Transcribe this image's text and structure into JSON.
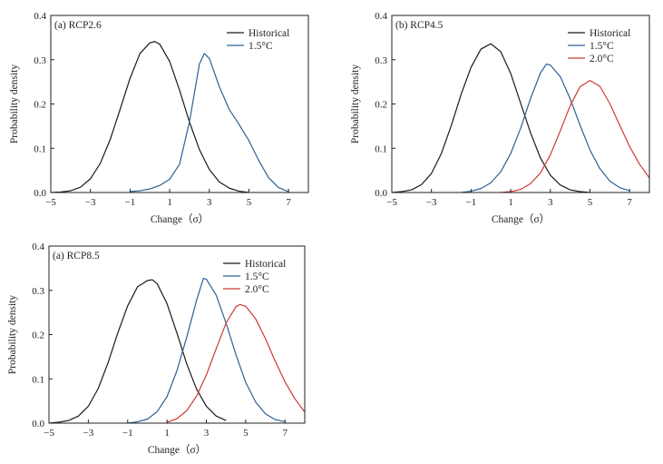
{
  "figure": {
    "background": "#ffffff"
  },
  "chart_data": [
    {
      "type": "line",
      "panel_label": "(a) RCP2.6",
      "xlabel": "Change（σ）",
      "ylabel": "Probability density",
      "xlim": [
        -5,
        8
      ],
      "ylim": [
        0,
        0.4
      ],
      "xticks": [
        -5,
        -3,
        -1,
        1,
        3,
        5,
        7
      ],
      "yticks": [
        0.0,
        0.1,
        0.2,
        0.3,
        0.4
      ],
      "ytick_labels": [
        "0.0",
        "0.1",
        "0.2",
        "0.3",
        "0.4"
      ],
      "grid": false,
      "legend_position": "top-right",
      "series": [
        {
          "name": "Historical",
          "color": "#1a1a1a",
          "x": [
            -5,
            -4.5,
            -4,
            -3.5,
            -3,
            -2.5,
            -2,
            -1.5,
            -1,
            -0.5,
            0,
            0.25,
            0.5,
            1,
            1.5,
            2,
            2.5,
            3,
            3.5,
            4,
            4.5,
            5
          ],
          "y": [
            0.0,
            0.001,
            0.004,
            0.012,
            0.031,
            0.066,
            0.12,
            0.188,
            0.258,
            0.314,
            0.338,
            0.341,
            0.335,
            0.296,
            0.231,
            0.159,
            0.097,
            0.052,
            0.024,
            0.01,
            0.003,
            0.0
          ]
        },
        {
          "name": "1.5°C",
          "color": "#2d6096",
          "x": [
            -1,
            -0.5,
            0,
            0.5,
            1,
            1.5,
            2,
            2.5,
            2.75,
            3,
            3.5,
            4,
            4.5,
            5,
            5.5,
            6,
            6.5,
            7
          ],
          "y": [
            0.002,
            0.004,
            0.008,
            0.016,
            0.03,
            0.064,
            0.16,
            0.29,
            0.314,
            0.303,
            0.24,
            0.188,
            0.154,
            0.117,
            0.072,
            0.033,
            0.011,
            0.002
          ]
        }
      ]
    },
    {
      "type": "line",
      "panel_label": "(b) RCP4.5",
      "xlabel": "Change（σ）",
      "ylabel": "Probability density",
      "xlim": [
        -5,
        8
      ],
      "ylim": [
        0,
        0.4
      ],
      "xticks": [
        -5,
        -3,
        -1,
        1,
        3,
        5,
        7
      ],
      "yticks": [
        0.0,
        0.1,
        0.2,
        0.3,
        0.4
      ],
      "ytick_labels": [
        "0.0",
        "0.1",
        "0.2",
        "0.3",
        "0.4"
      ],
      "grid": false,
      "legend_position": "top-right",
      "series": [
        {
          "name": "Historical",
          "color": "#1a1a1a",
          "x": [
            -5,
            -4.5,
            -4,
            -3.5,
            -3,
            -2.5,
            -2,
            -1.5,
            -1,
            -0.5,
            0,
            0.5,
            1,
            1.5,
            2,
            2.5,
            3,
            3.5,
            4,
            4.5,
            5
          ],
          "y": [
            0.0,
            0.002,
            0.006,
            0.018,
            0.043,
            0.088,
            0.151,
            0.222,
            0.283,
            0.324,
            0.336,
            0.318,
            0.269,
            0.202,
            0.135,
            0.078,
            0.039,
            0.017,
            0.006,
            0.002,
            0.0
          ]
        },
        {
          "name": "1.5°C",
          "color": "#2d6096",
          "x": [
            -1.5,
            -1,
            -0.5,
            0,
            0.5,
            1,
            1.5,
            2,
            2.5,
            2.8,
            3,
            3.5,
            4,
            4.5,
            5,
            5.5,
            6,
            6.5,
            7
          ],
          "y": [
            0.0,
            0.003,
            0.009,
            0.022,
            0.047,
            0.088,
            0.145,
            0.212,
            0.27,
            0.29,
            0.288,
            0.262,
            0.212,
            0.152,
            0.096,
            0.054,
            0.026,
            0.011,
            0.004
          ]
        },
        {
          "name": "2.0°C",
          "color": "#cc3a33",
          "x": [
            0.5,
            1,
            1.5,
            2,
            2.5,
            3,
            3.5,
            4,
            4.5,
            5,
            5.5,
            6,
            6.5,
            7,
            7.5,
            8
          ],
          "y": [
            0.0,
            0.002,
            0.007,
            0.02,
            0.044,
            0.085,
            0.139,
            0.196,
            0.239,
            0.253,
            0.24,
            0.201,
            0.152,
            0.104,
            0.064,
            0.033
          ]
        }
      ]
    },
    {
      "type": "line",
      "panel_label": "(a) RCP8.5",
      "xlabel": "Change（σ）",
      "ylabel": "Probability density",
      "xlim": [
        -5,
        8
      ],
      "ylim": [
        0,
        0.4
      ],
      "xticks": [
        -5,
        -3,
        -1,
        1,
        3,
        5,
        7
      ],
      "yticks": [
        0.0,
        0.1,
        0.2,
        0.3,
        0.4
      ],
      "ytick_labels": [
        "0.0",
        "0.1",
        "0.2",
        "0.3",
        "0.4"
      ],
      "grid": false,
      "legend_position": "top-right",
      "series": [
        {
          "name": "Historical",
          "color": "#1a1a1a",
          "x": [
            -5,
            -4.5,
            -4,
            -3.5,
            -3,
            -2.5,
            -2,
            -1.5,
            -1,
            -0.5,
            0,
            0.25,
            0.5,
            1,
            1.5,
            2,
            2.5,
            3,
            3.5,
            4
          ],
          "y": [
            0.0,
            0.002,
            0.006,
            0.016,
            0.038,
            0.078,
            0.136,
            0.204,
            0.265,
            0.308,
            0.322,
            0.324,
            0.315,
            0.27,
            0.204,
            0.134,
            0.077,
            0.038,
            0.016,
            0.006
          ]
        },
        {
          "name": "1.5°C",
          "color": "#2d6096",
          "x": [
            -1,
            -0.5,
            0,
            0.5,
            1,
            1.5,
            2,
            2.5,
            2.85,
            3,
            3.5,
            4,
            4.5,
            5,
            5.5,
            6,
            6.5,
            7
          ],
          "y": [
            0.0,
            0.003,
            0.009,
            0.026,
            0.06,
            0.118,
            0.194,
            0.277,
            0.327,
            0.325,
            0.289,
            0.226,
            0.155,
            0.092,
            0.048,
            0.021,
            0.008,
            0.003
          ]
        },
        {
          "name": "2.0°C",
          "color": "#cc3a33",
          "x": [
            1,
            1.5,
            2,
            2.5,
            3,
            3.5,
            4,
            4.5,
            4.7,
            5,
            5.5,
            6,
            6.5,
            7,
            7.5,
            8
          ],
          "y": [
            0.002,
            0.01,
            0.028,
            0.061,
            0.109,
            0.168,
            0.226,
            0.263,
            0.268,
            0.264,
            0.236,
            0.191,
            0.14,
            0.093,
            0.055,
            0.025
          ]
        }
      ]
    }
  ]
}
